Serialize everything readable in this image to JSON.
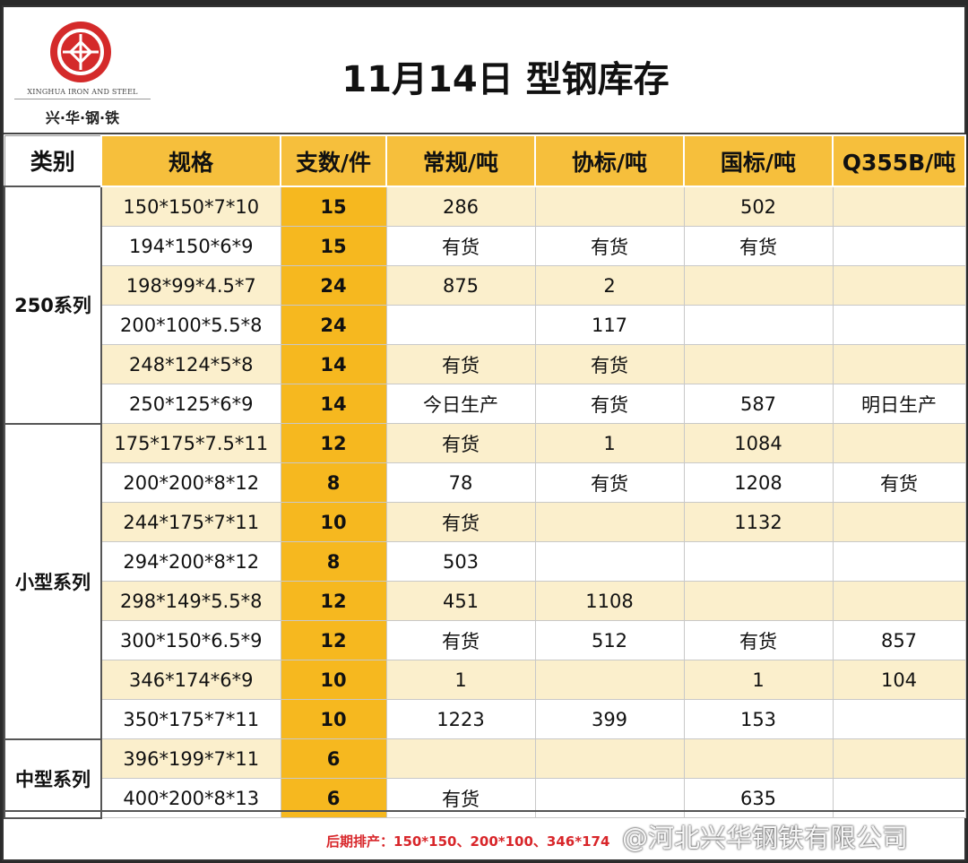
{
  "logo": {
    "en": "XINGHUA IRON AND STEEL",
    "cn": "兴·华·钢·铁"
  },
  "title": "11月14日 型钢库存",
  "headers": [
    "类别",
    "规格",
    "支数/件",
    "常规/吨",
    "协标/吨",
    "国标/吨",
    "Q355B/吨"
  ],
  "groups": [
    {
      "category": "250系列",
      "rows": [
        {
          "spec": "150*150*7*10",
          "qty": "15",
          "regular": "286",
          "assoc": "",
          "national": "502",
          "q355b": ""
        },
        {
          "spec": "194*150*6*9",
          "qty": "15",
          "regular": "有货",
          "assoc": "有货",
          "national": "有货",
          "q355b": ""
        },
        {
          "spec": "198*99*4.5*7",
          "qty": "24",
          "regular": "875",
          "assoc": "2",
          "national": "",
          "q355b": ""
        },
        {
          "spec": "200*100*5.5*8",
          "qty": "24",
          "regular": "",
          "assoc": "117",
          "national": "",
          "q355b": ""
        },
        {
          "spec": "248*124*5*8",
          "qty": "14",
          "regular": "有货",
          "assoc": "有货",
          "national": "",
          "q355b": ""
        },
        {
          "spec": "250*125*6*9",
          "qty": "14",
          "regular": "今日生产",
          "assoc": "有货",
          "national": "587",
          "q355b": "明日生产"
        }
      ]
    },
    {
      "category": "小型系列",
      "rows": [
        {
          "spec": "175*175*7.5*11",
          "qty": "12",
          "regular": "有货",
          "assoc": "1",
          "national": "1084",
          "q355b": ""
        },
        {
          "spec": "200*200*8*12",
          "qty": "8",
          "regular": "78",
          "assoc": "有货",
          "national": "1208",
          "q355b": "有货"
        },
        {
          "spec": "244*175*7*11",
          "qty": "10",
          "regular": "有货",
          "assoc": "",
          "national": "1132",
          "q355b": ""
        },
        {
          "spec": "294*200*8*12",
          "qty": "8",
          "regular": "503",
          "assoc": "",
          "national": "",
          "q355b": ""
        },
        {
          "spec": "298*149*5.5*8",
          "qty": "12",
          "regular": "451",
          "assoc": "1108",
          "national": "",
          "q355b": ""
        },
        {
          "spec": "300*150*6.5*9",
          "qty": "12",
          "regular": "有货",
          "assoc": "512",
          "national": "有货",
          "q355b": "857"
        },
        {
          "spec": "346*174*6*9",
          "qty": "10",
          "regular": "1",
          "assoc": "",
          "national": "1",
          "q355b": "104"
        },
        {
          "spec": "350*175*7*11",
          "qty": "10",
          "regular": "1223",
          "assoc": "399",
          "national": "153",
          "q355b": ""
        }
      ]
    },
    {
      "category": "中型系列",
      "rows": [
        {
          "spec": "396*199*7*11",
          "qty": "6",
          "regular": "",
          "assoc": "",
          "national": "",
          "q355b": ""
        },
        {
          "spec": "400*200*8*13",
          "qty": "6",
          "regular": "有货",
          "assoc": "",
          "national": "635",
          "q355b": ""
        }
      ]
    }
  ],
  "highlight_values": [
    "今日生产",
    "明日生产"
  ],
  "colors": {
    "header_bg": "#f6bf3c",
    "qty_bg": "#f6b81f",
    "odd_row_bg": "#fbefcc",
    "red": "#d8262a",
    "logo_red": "#d42a2a"
  },
  "footer": {
    "note": "后期排产：150*150、200*100、346*174",
    "watermark": "@河北兴华钢铁有限公司"
  }
}
